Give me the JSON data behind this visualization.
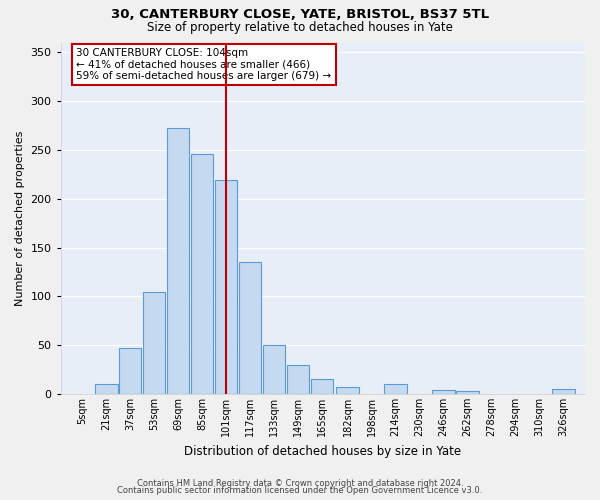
{
  "title1": "30, CANTERBURY CLOSE, YATE, BRISTOL, BS37 5TL",
  "title2": "Size of property relative to detached houses in Yate",
  "xlabel": "Distribution of detached houses by size in Yate",
  "ylabel": "Number of detached properties",
  "footer1": "Contains HM Land Registry data © Crown copyright and database right 2024.",
  "footer2": "Contains public sector information licensed under the Open Government Licence v3.0.",
  "annotation_line1": "30 CANTERBURY CLOSE: 104sqm",
  "annotation_line2": "← 41% of detached houses are smaller (466)",
  "annotation_line3": "59% of semi-detached houses are larger (679) →",
  "bar_labels": [
    "5sqm",
    "21sqm",
    "37sqm",
    "53sqm",
    "69sqm",
    "85sqm",
    "101sqm",
    "117sqm",
    "133sqm",
    "149sqm",
    "165sqm",
    "182sqm",
    "198sqm",
    "214sqm",
    "230sqm",
    "246sqm",
    "262sqm",
    "278sqm",
    "294sqm",
    "310sqm",
    "326sqm"
  ],
  "bar_values": [
    0,
    10,
    47,
    104,
    272,
    246,
    219,
    135,
    50,
    30,
    15,
    7,
    0,
    10,
    0,
    4,
    3,
    0,
    0,
    0,
    5
  ],
  "bin_size": 16,
  "bar_color": "#c5d9f0",
  "bar_edge_color": "#5b9bd5",
  "vline_color": "#c00000",
  "vline_x": 101,
  "background_color": "#e8eef8",
  "grid_color": "#ffffff",
  "fig_bg_color": "#f0f0f0",
  "ylim": [
    0,
    360
  ],
  "yticks": [
    0,
    50,
    100,
    150,
    200,
    250,
    300,
    350
  ],
  "title1_fontsize": 9.5,
  "title2_fontsize": 8.5,
  "xlabel_fontsize": 8.5,
  "ylabel_fontsize": 8.0,
  "xtick_fontsize": 7.0,
  "ytick_fontsize": 8.0,
  "annot_fontsize": 7.5,
  "footer_fontsize": 6.0
}
